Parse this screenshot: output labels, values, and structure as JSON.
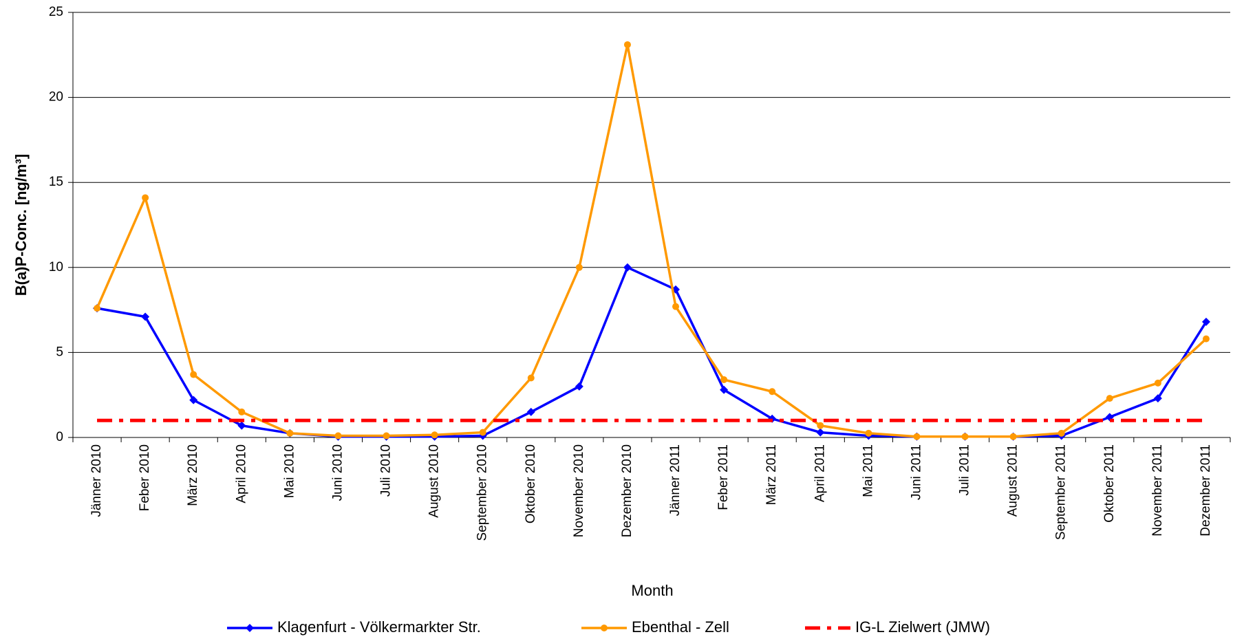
{
  "chart_data": {
    "type": "line",
    "x_label": "Month",
    "y_label": "B(a)P-Conc. [ng/m³]",
    "categories": [
      "Jänner 2010",
      "Feber 2010",
      "März 2010",
      "April 2010",
      "Mai 2010",
      "Juni 2010",
      "Juli 2010",
      "August 2010",
      "September 2010",
      "Oktober 2010",
      "November 2010",
      "Dezember 2010",
      "Jänner 2011",
      "Feber 2011",
      "März 2011",
      "April 2011",
      "Mai 2011",
      "Juni 2011",
      "Juli 2011",
      "August 2011",
      "September 2011",
      "Oktober 2011",
      "November 2011",
      "Dezember 2011"
    ],
    "series": [
      {
        "name": "Klagenfurt - Völkermarkter Str.",
        "color": "#0000ff",
        "marker": "diamond",
        "dash": "solid",
        "values": [
          7.6,
          7.1,
          2.2,
          0.7,
          0.25,
          0.05,
          0.05,
          0.05,
          0.1,
          1.5,
          3.0,
          10.0,
          8.7,
          2.8,
          1.1,
          0.3,
          0.1,
          0.05,
          0.05,
          0.05,
          0.1,
          1.2,
          2.3,
          6.8
        ]
      },
      {
        "name": "Ebenthal - Zell",
        "color": "#ff9900",
        "marker": "circle",
        "dash": "solid",
        "values": [
          7.6,
          14.1,
          3.7,
          1.5,
          0.25,
          0.1,
          0.1,
          0.15,
          0.3,
          3.5,
          10.0,
          23.1,
          7.7,
          3.4,
          2.7,
          0.7,
          0.25,
          0.05,
          0.05,
          0.05,
          0.25,
          2.3,
          3.2,
          5.8
        ]
      },
      {
        "name": "IG-L Zielwert (JMW)",
        "color": "#ff0000",
        "marker": "none",
        "dash": "dash-dot",
        "values": [
          1,
          1,
          1,
          1,
          1,
          1,
          1,
          1,
          1,
          1,
          1,
          1,
          1,
          1,
          1,
          1,
          1,
          1,
          1,
          1,
          1,
          1,
          1,
          1
        ]
      }
    ],
    "ylim": [
      0,
      25
    ],
    "yticks": [
      0,
      5,
      10,
      15,
      20,
      25
    ],
    "grid": true
  }
}
